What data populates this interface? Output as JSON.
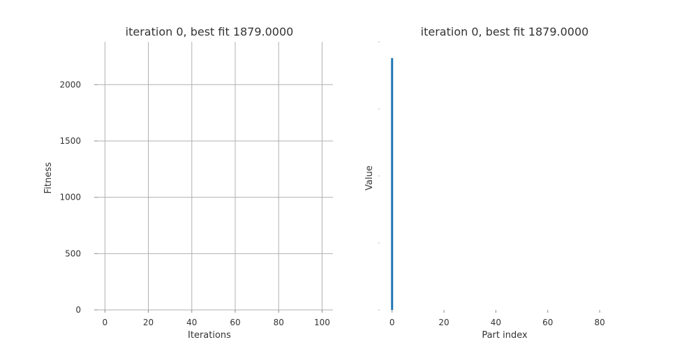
{
  "chart_data": [
    {
      "type": "line",
      "title": "iteration 0, best fit 1879.0000",
      "xlabel": "Iterations",
      "ylabel": "Fitness",
      "xlim": [
        -3,
        105
      ],
      "ylim": [
        0,
        2380
      ],
      "xticks": [
        0,
        20,
        40,
        60,
        80,
        100
      ],
      "yticks": [
        0,
        500,
        1000,
        1500,
        2000
      ],
      "grid": true,
      "series": [
        {
          "values": []
        }
      ]
    },
    {
      "type": "bar",
      "title": "iteration 0, best fit 1879.0000",
      "xlabel": "Part index",
      "ylabel": "Value",
      "xlim": [
        -4.5,
        91
      ],
      "ylim": [
        0,
        2000
      ],
      "xticks": [
        0,
        20,
        40,
        60,
        80
      ],
      "yticks": [
        0,
        500,
        1000,
        1500,
        2000
      ],
      "grid": false,
      "color": "#1f77b4",
      "series": [
        {
          "x": [
            0
          ],
          "values": [
            1879
          ]
        }
      ]
    }
  ]
}
